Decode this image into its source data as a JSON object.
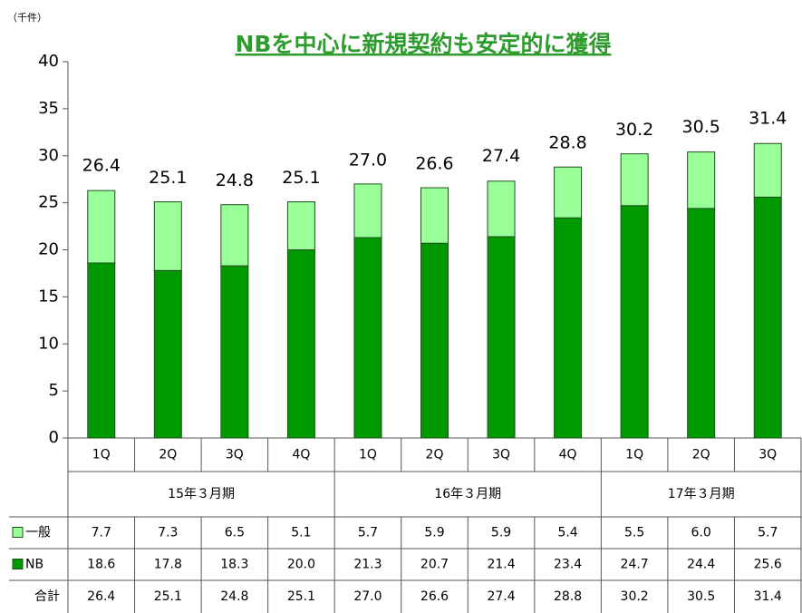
{
  "chart_data": {
    "type": "stacked_bar",
    "title": "NBを中心に新規契約も安定的に獲得",
    "y_unit": "（千件）",
    "categories": [
      "1Q",
      "2Q",
      "3Q",
      "4Q",
      "1Q",
      "2Q",
      "3Q",
      "4Q",
      "1Q",
      "2Q",
      "3Q"
    ],
    "groups": [
      "15年３月期",
      "16年３月期",
      "17年３月期"
    ],
    "series": [
      {
        "name": "NB",
        "color": "#009900",
        "values": [
          18.6,
          17.8,
          18.3,
          20.0,
          21.3,
          20.7,
          21.4,
          23.4,
          24.7,
          24.4,
          25.6
        ],
        "value_labels": [
          "18.6",
          "17.8",
          "18.3",
          "20.0",
          "21.3",
          "20.7",
          "21.4",
          "23.4",
          "24.7",
          "24.4",
          "25.6"
        ]
      },
      {
        "name": "一般",
        "color": "#99ff99",
        "values": [
          7.7,
          7.3,
          6.5,
          5.1,
          5.7,
          5.9,
          5.9,
          5.4,
          5.5,
          6.0,
          5.7
        ],
        "value_labels": [
          "7.7",
          "7.3",
          "6.5",
          "5.1",
          "5.7",
          "5.9",
          "5.9",
          "5.4",
          "5.5",
          "6.0",
          "5.7"
        ]
      }
    ],
    "totals": {
      "name": "合計",
      "values": [
        26.4,
        25.1,
        24.8,
        25.1,
        27.0,
        26.6,
        27.4,
        28.8,
        30.2,
        30.5,
        31.4
      ],
      "value_labels": [
        "26.4",
        "25.1",
        "24.8",
        "25.1",
        "27.0",
        "26.6",
        "27.4",
        "28.8",
        "30.2",
        "30.5",
        "31.4"
      ]
    },
    "table_order": [
      1,
      0
    ],
    "ylim": [
      0,
      40
    ],
    "yticks": [
      0,
      5,
      10,
      15,
      20,
      25,
      30,
      35,
      40
    ]
  }
}
